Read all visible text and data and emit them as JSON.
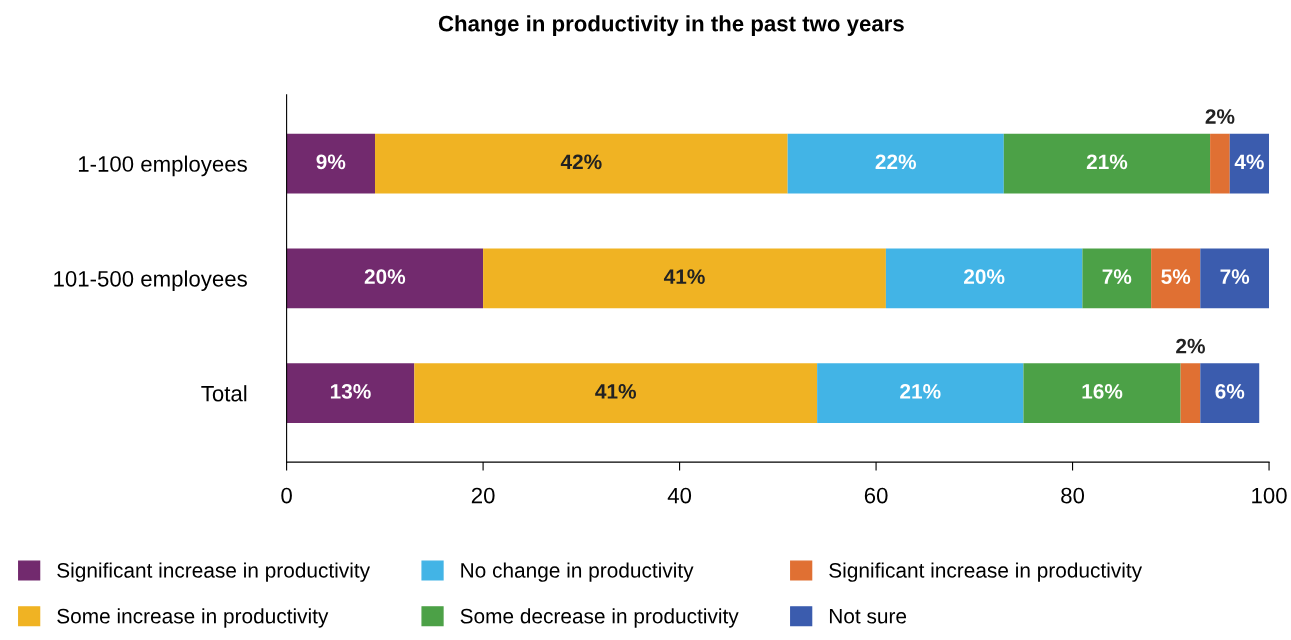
{
  "chart_data": {
    "type": "bar",
    "orientation": "horizontal",
    "stacked": true,
    "title": "Change in productivity in the past two years",
    "categories": [
      "1-100 employees",
      "101-500 employees",
      "Total"
    ],
    "series": [
      {
        "name": "Significant increase in productivity",
        "color": "#722a6e",
        "values": [
          9,
          20,
          13
        ],
        "value_labels": [
          "9%",
          "20%",
          "13%"
        ]
      },
      {
        "name": "Some increase in productivity",
        "color": "#f0b323",
        "values": [
          42,
          41,
          41
        ],
        "value_labels": [
          "42%",
          "41%",
          "41%"
        ]
      },
      {
        "name": "No change in productivity",
        "color": "#42b4e6",
        "values": [
          22,
          20,
          21
        ],
        "value_labels": [
          "22%",
          "20%",
          "21%"
        ]
      },
      {
        "name": "Some decrease in productivity",
        "color": "#4ca147",
        "values": [
          21,
          7,
          16
        ],
        "value_labels": [
          "21%",
          "7%",
          "16%"
        ]
      },
      {
        "name": "Significant increase in productivity",
        "color": "#e07033",
        "values": [
          2,
          5,
          2
        ],
        "value_labels": [
          "2%",
          "5%",
          "2%"
        ]
      },
      {
        "name": "Not sure",
        "color": "#3b5cae",
        "values": [
          4,
          7,
          6
        ],
        "value_labels": [
          "4%",
          "7%",
          "6%"
        ]
      }
    ],
    "xlim": [
      0,
      100
    ],
    "xticks": [
      0,
      20,
      40,
      60,
      80,
      100
    ],
    "grid": false,
    "legend": "bottom"
  }
}
